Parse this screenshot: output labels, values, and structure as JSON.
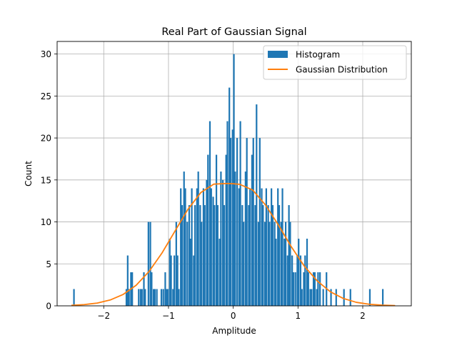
{
  "chart_data": {
    "type": "bar",
    "title": "Real Part of Gaussian Signal",
    "xlabel": "Amplitude",
    "ylabel": "Count",
    "xlim": [
      -2.72,
      2.75
    ],
    "ylim": [
      0,
      31.5
    ],
    "xticks": [
      -2,
      -1,
      0,
      1,
      2
    ],
    "xtick_labels": [
      "−2",
      "−1",
      "0",
      "1",
      "2"
    ],
    "yticks": [
      0,
      5,
      10,
      15,
      20,
      25,
      30
    ],
    "ytick_labels": [
      "0",
      "5",
      "10",
      "15",
      "20",
      "25",
      "30"
    ],
    "grid": true,
    "legend": {
      "placement": "top-right",
      "entries": [
        {
          "label": "Histogram",
          "kind": "patch",
          "color": "#1f77b4"
        },
        {
          "label": "Gaussian Distribution",
          "kind": "line",
          "color": "#ff7f0e"
        }
      ]
    },
    "histogram": {
      "name": "Histogram",
      "color": "#1f77b4",
      "bin_width": 0.0245,
      "bins": [
        [
          -2.46,
          2
        ],
        [
          -1.65,
          2
        ],
        [
          -1.63,
          6
        ],
        [
          -1.61,
          2
        ],
        [
          -1.58,
          4
        ],
        [
          -1.56,
          4
        ],
        [
          -1.46,
          2
        ],
        [
          -1.43,
          2
        ],
        [
          -1.41,
          2
        ],
        [
          -1.38,
          4
        ],
        [
          -1.36,
          2
        ],
        [
          -1.31,
          10
        ],
        [
          -1.28,
          10
        ],
        [
          -1.26,
          4
        ],
        [
          -1.23,
          2
        ],
        [
          -1.21,
          2
        ],
        [
          -1.18,
          2
        ],
        [
          -1.11,
          2
        ],
        [
          -1.08,
          2
        ],
        [
          -1.05,
          4
        ],
        [
          -1.03,
          2
        ],
        [
          -1.01,
          2
        ],
        [
          -0.98,
          8
        ],
        [
          -0.96,
          6
        ],
        [
          -0.93,
          2
        ],
        [
          -0.91,
          6
        ],
        [
          -0.88,
          10
        ],
        [
          -0.86,
          6
        ],
        [
          -0.84,
          2
        ],
        [
          -0.81,
          14
        ],
        [
          -0.79,
          12
        ],
        [
          -0.76,
          16
        ],
        [
          -0.74,
          14
        ],
        [
          -0.71,
          10
        ],
        [
          -0.68,
          12
        ],
        [
          -0.66,
          8
        ],
        [
          -0.64,
          14
        ],
        [
          -0.61,
          6
        ],
        [
          -0.59,
          12
        ],
        [
          -0.56,
          14
        ],
        [
          -0.54,
          16
        ],
        [
          -0.51,
          12
        ],
        [
          -0.49,
          10
        ],
        [
          -0.46,
          14
        ],
        [
          -0.44,
          12
        ],
        [
          -0.41,
          15
        ],
        [
          -0.39,
          18
        ],
        [
          -0.36,
          22
        ],
        [
          -0.34,
          14
        ],
        [
          -0.31,
          13
        ],
        [
          -0.29,
          12
        ],
        [
          -0.26,
          18
        ],
        [
          -0.24,
          12
        ],
        [
          -0.21,
          8
        ],
        [
          -0.19,
          16
        ],
        [
          -0.16,
          15
        ],
        [
          -0.14,
          12
        ],
        [
          -0.11,
          18
        ],
        [
          -0.09,
          22
        ],
        [
          -0.06,
          26
        ],
        [
          -0.04,
          20
        ],
        [
          -0.01,
          21
        ],
        [
          0.01,
          30
        ],
        [
          0.03,
          16
        ],
        [
          0.06,
          20
        ],
        [
          0.09,
          14
        ],
        [
          0.11,
          22
        ],
        [
          0.14,
          12
        ],
        [
          0.16,
          10
        ],
        [
          0.19,
          16
        ],
        [
          0.21,
          20
        ],
        [
          0.24,
          12
        ],
        [
          0.26,
          14
        ],
        [
          0.29,
          18
        ],
        [
          0.31,
          20
        ],
        [
          0.34,
          12
        ],
        [
          0.36,
          24
        ],
        [
          0.39,
          10
        ],
        [
          0.41,
          20
        ],
        [
          0.44,
          14
        ],
        [
          0.46,
          12
        ],
        [
          0.49,
          10
        ],
        [
          0.51,
          14
        ],
        [
          0.54,
          12
        ],
        [
          0.56,
          10
        ],
        [
          0.59,
          14
        ],
        [
          0.61,
          12
        ],
        [
          0.64,
          10
        ],
        [
          0.66,
          8
        ],
        [
          0.69,
          14
        ],
        [
          0.71,
          12
        ],
        [
          0.74,
          10
        ],
        [
          0.76,
          14
        ],
        [
          0.79,
          8
        ],
        [
          0.81,
          10
        ],
        [
          0.84,
          6
        ],
        [
          0.86,
          12
        ],
        [
          0.88,
          10
        ],
        [
          0.91,
          6
        ],
        [
          0.93,
          4
        ],
        [
          0.96,
          4
        ],
        [
          0.99,
          6
        ],
        [
          1.01,
          8
        ],
        [
          1.04,
          6
        ],
        [
          1.06,
          2
        ],
        [
          1.09,
          4
        ],
        [
          1.11,
          6
        ],
        [
          1.14,
          8
        ],
        [
          1.16,
          4
        ],
        [
          1.19,
          2
        ],
        [
          1.21,
          2
        ],
        [
          1.24,
          4
        ],
        [
          1.26,
          4
        ],
        [
          1.29,
          2
        ],
        [
          1.31,
          4
        ],
        [
          1.34,
          4
        ],
        [
          1.39,
          2
        ],
        [
          1.44,
          4
        ],
        [
          1.51,
          2
        ],
        [
          1.59,
          2
        ],
        [
          1.71,
          2
        ],
        [
          1.81,
          2
        ],
        [
          2.11,
          2
        ],
        [
          2.31,
          2
        ]
      ]
    },
    "curve": {
      "name": "Gaussian Distribution",
      "color": "#ff7f0e",
      "x": [
        -2.5,
        -2.3,
        -2.1,
        -1.9,
        -1.7,
        -1.5,
        -1.3,
        -1.1,
        -0.9,
        -0.7,
        -0.5,
        -0.3,
        -0.1,
        0.0,
        0.1,
        0.3,
        0.5,
        0.7,
        0.9,
        1.1,
        1.3,
        1.5,
        1.7,
        1.9,
        2.1,
        2.3,
        2.5
      ],
      "y": [
        0.06,
        0.15,
        0.33,
        0.7,
        1.36,
        2.45,
        4.1,
        6.3,
        8.9,
        11.5,
        13.5,
        14.5,
        14.58,
        14.55,
        14.48,
        13.8,
        12.0,
        9.6,
        7.0,
        4.7,
        2.95,
        1.68,
        0.88,
        0.42,
        0.19,
        0.08,
        0.03
      ]
    }
  }
}
